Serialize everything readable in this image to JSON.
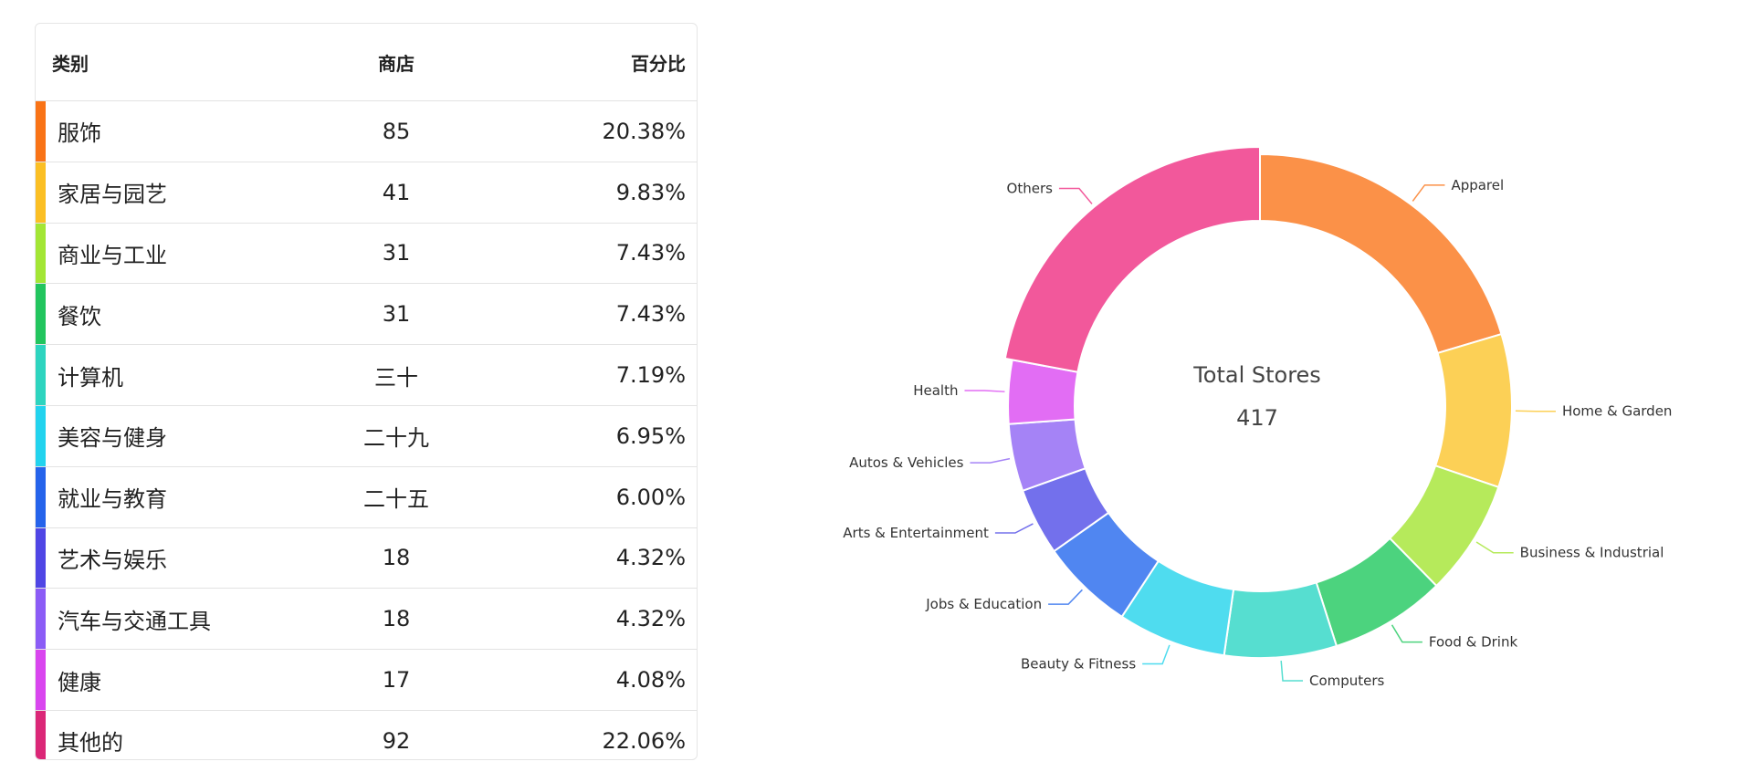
{
  "table": {
    "headers": {
      "category": "类别",
      "stores": "商店",
      "percent": "百分比"
    },
    "rows": [
      {
        "category": "服饰",
        "stores": "85",
        "percent": "20.38%",
        "color": "#f97316"
      },
      {
        "category": "家居与园艺",
        "stores": "41",
        "percent": "9.83%",
        "color": "#fbbf24"
      },
      {
        "category": "商业与工业",
        "stores": "31",
        "percent": "7.43%",
        "color": "#a3e635"
      },
      {
        "category": "餐饮",
        "stores": "31",
        "percent": "7.43%",
        "color": "#22c55e"
      },
      {
        "category": "计算机",
        "stores": "三十",
        "percent": "7.19%",
        "color": "#2dd4bf"
      },
      {
        "category": "美容与健身",
        "stores": "二十九",
        "percent": "6.95%",
        "color": "#22d3ee"
      },
      {
        "category": "就业与教育",
        "stores": "二十五",
        "percent": "6.00%",
        "color": "#2563eb"
      },
      {
        "category": "艺术与娱乐",
        "stores": "18",
        "percent": "4.32%",
        "color": "#4f46e5"
      },
      {
        "category": "汽车与交通工具",
        "stores": "18",
        "percent": "4.32%",
        "color": "#8b5cf6"
      },
      {
        "category": "健康",
        "stores": "17",
        "percent": "4.08%",
        "color": "#d946ef"
      },
      {
        "category": "其他的",
        "stores": "92",
        "percent": "22.06%",
        "color": "#db2777"
      }
    ]
  },
  "chart_data": {
    "type": "pie",
    "title": "Total Stores",
    "total": "417",
    "slices": [
      {
        "label": "Apparel",
        "value": 85,
        "color": "#fb9148"
      },
      {
        "label": "Home & Garden",
        "value": 41,
        "color": "#fcd056"
      },
      {
        "label": "Business & Industrial",
        "value": 31,
        "color": "#b6ea5b"
      },
      {
        "label": "Food & Drink",
        "value": 31,
        "color": "#4cd37e"
      },
      {
        "label": "Computers",
        "value": 30,
        "color": "#56ded0"
      },
      {
        "label": "Beauty & Fitness",
        "value": 29,
        "color": "#4fdcef"
      },
      {
        "label": "Jobs & Education",
        "value": 25,
        "color": "#5086f1"
      },
      {
        "label": "Arts & Entertainment",
        "value": 18,
        "color": "#7370ec"
      },
      {
        "label": "Autos & Vehicles",
        "value": 18,
        "color": "#a583f6"
      },
      {
        "label": "Health",
        "value": 17,
        "color": "#e26df4"
      },
      {
        "label": "Others",
        "value": 92,
        "color": "#f2589b"
      }
    ]
  }
}
